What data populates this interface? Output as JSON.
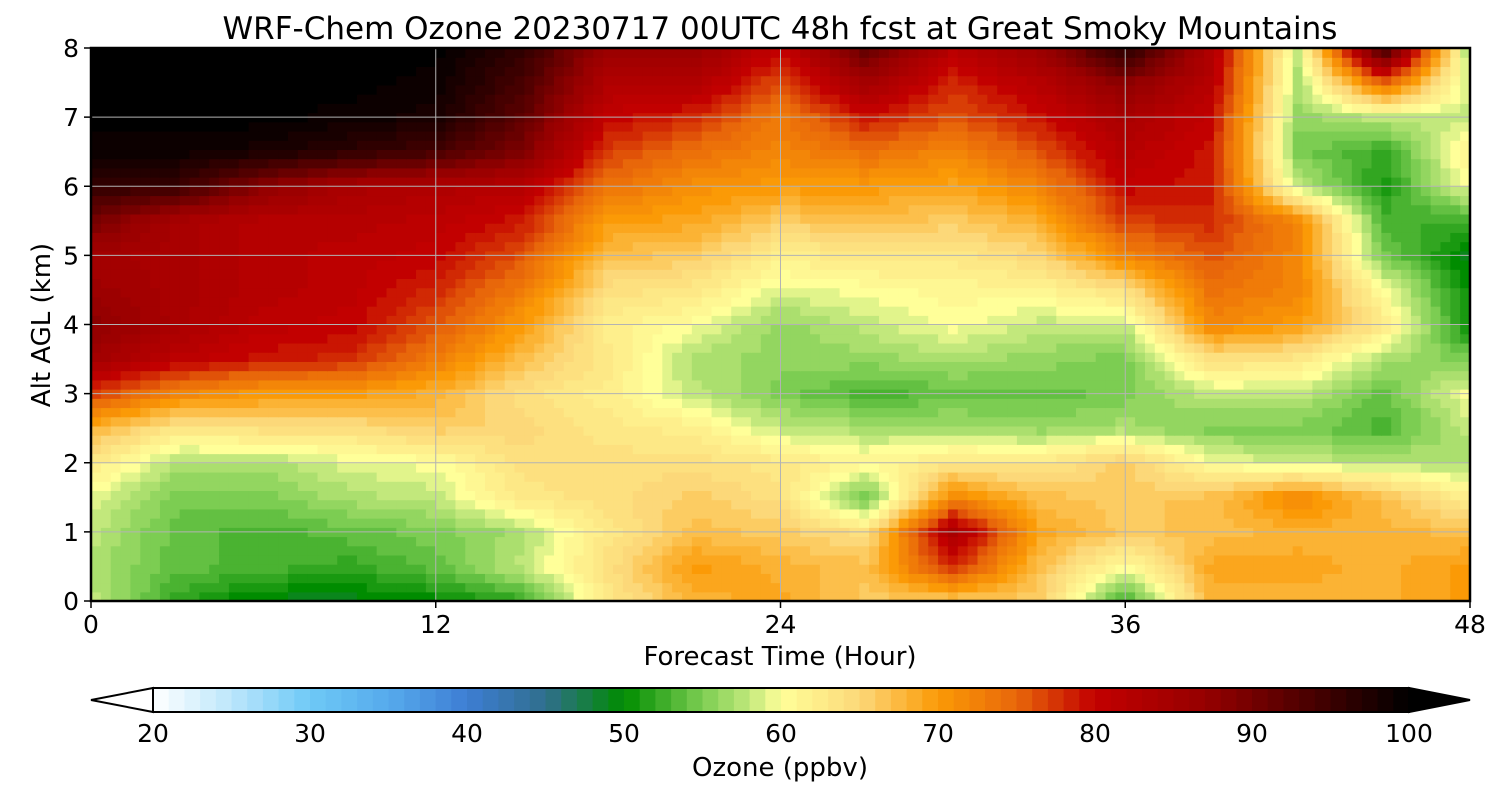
{
  "chart_data": {
    "type": "heatmap",
    "title": "WRF-Chem Ozone  20230717 00UTC 48h fcst at Great Smoky Mountains",
    "xlabel": "Forecast Time (Hour)",
    "ylabel": "Alt AGL (km)",
    "xlim": [
      0,
      48
    ],
    "ylim": [
      0,
      8
    ],
    "xticks": [
      0,
      12,
      24,
      36,
      48
    ],
    "yticks": [
      0,
      1,
      2,
      3,
      4,
      5,
      6,
      7,
      8
    ],
    "grid": true,
    "x": [
      0,
      3,
      6,
      9,
      12,
      15,
      18,
      21,
      24,
      27,
      30,
      33,
      36,
      39,
      42,
      45,
      48
    ],
    "y": [
      0,
      0.5,
      1,
      1.5,
      2,
      2.5,
      3,
      3.5,
      4,
      4.5,
      5,
      5.5,
      6,
      6.5,
      7,
      7.5,
      8
    ],
    "values": [
      [
        58,
        52,
        49,
        49,
        50,
        52,
        63,
        68,
        69,
        66,
        66,
        66,
        52,
        68,
        68,
        68,
        70
      ],
      [
        57,
        54,
        53,
        52,
        54,
        58,
        64,
        70,
        68,
        67,
        78,
        67,
        60,
        69,
        69,
        68,
        70
      ],
      [
        58,
        54,
        53,
        54,
        55,
        57,
        63,
        67,
        66,
        64,
        84,
        69,
        66,
        67,
        68,
        68,
        67
      ],
      [
        59,
        55,
        55,
        57,
        58,
        63,
        64,
        66,
        64,
        54,
        72,
        67,
        66,
        67,
        72,
        67,
        62
      ],
      [
        63,
        57,
        57,
        59,
        60,
        64,
        64,
        64,
        63,
        61,
        63,
        63,
        66,
        60,
        58,
        58,
        57
      ],
      [
        68,
        63,
        64,
        64,
        66,
        65,
        63,
        62,
        58,
        57,
        57,
        56,
        57,
        55,
        55,
        53,
        58
      ],
      [
        77,
        72,
        70,
        70,
        68,
        64,
        62,
        58,
        55,
        53,
        54,
        54,
        55,
        58,
        58,
        54,
        60
      ],
      [
        85,
        81,
        79,
        78,
        73,
        67,
        63,
        57,
        56,
        56,
        57,
        56,
        55,
        64,
        63,
        57,
        55
      ],
      [
        88,
        84,
        81,
        80,
        76,
        70,
        62,
        60,
        56,
        58,
        60,
        58,
        58,
        72,
        70,
        63,
        50
      ],
      [
        86,
        84,
        82,
        81,
        78,
        73,
        64,
        63,
        59,
        60,
        61,
        61,
        64,
        74,
        72,
        60,
        50
      ],
      [
        85,
        84,
        82,
        81,
        80,
        76,
        67,
        66,
        62,
        63,
        63,
        65,
        72,
        76,
        72,
        55,
        49
      ],
      [
        90,
        84,
        82,
        82,
        81,
        79,
        70,
        69,
        66,
        67,
        66,
        68,
        77,
        78,
        72,
        53,
        52
      ],
      [
        96,
        95,
        88,
        84,
        83,
        82,
        74,
        71,
        70,
        70,
        69,
        72,
        80,
        79,
        58,
        51,
        60
      ],
      [
        99,
        99,
        98,
        96,
        94,
        89,
        77,
        74,
        72,
        74,
        72,
        76,
        82,
        79,
        55,
        52,
        62
      ],
      [
        100,
        100,
        100,
        99,
        98,
        92,
        80,
        78,
        73,
        79,
        76,
        79,
        84,
        80,
        56,
        58,
        58
      ],
      [
        100,
        100,
        100,
        100,
        99,
        94,
        83,
        83,
        76,
        85,
        78,
        82,
        88,
        82,
        57,
        75,
        58
      ],
      [
        100,
        100,
        100,
        100,
        100,
        96,
        86,
        87,
        80,
        92,
        82,
        86,
        97,
        83,
        58,
        96,
        56
      ]
    ],
    "colorbar": {
      "label": "Ozone  (ppbv)",
      "min": 20,
      "max": 100,
      "ticks": [
        20,
        30,
        40,
        50,
        60,
        70,
        80,
        90,
        100
      ],
      "extend": "both"
    },
    "colors": {
      "v20": "#ffffff",
      "v25": "#bce6fb",
      "v30": "#6ec9f6",
      "v35": "#56aaec",
      "v40": "#3d7dd3",
      "v45": "#306e8d",
      "v50": "#008c00",
      "v55": "#7ccd52",
      "v58": "#c2e87c",
      "v60": "#ffff99",
      "v65": "#fcd879",
      "v70": "#fb9a06",
      "v75": "#e8670a",
      "v80": "#c20000",
      "v87": "#960000",
      "v95": "#3b0000",
      "v100": "#000000"
    }
  }
}
